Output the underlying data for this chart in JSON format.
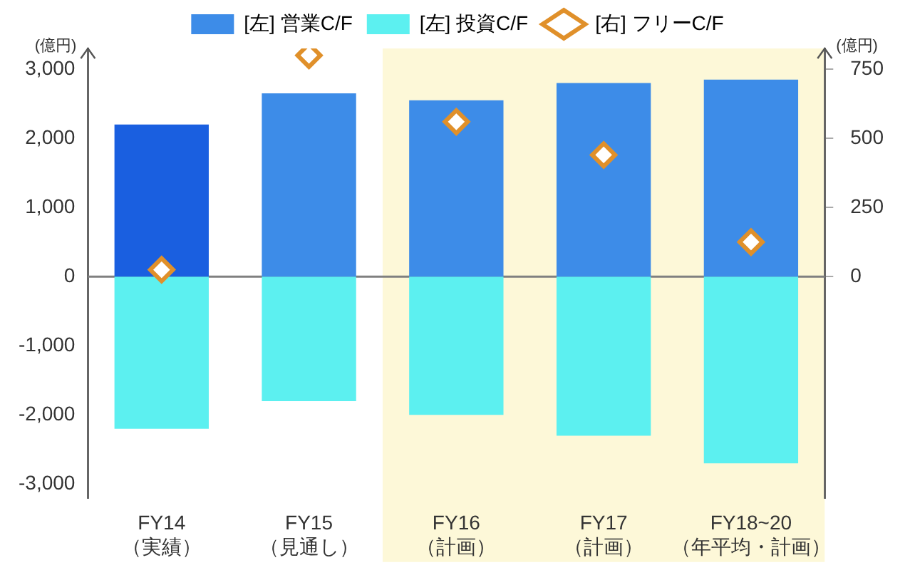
{
  "chart_data": {
    "type": "bar",
    "stacked": true,
    "categories": [
      "FY14\n（実績）",
      "FY15\n（見通し）",
      "FY16\n（計画）",
      "FY17\n（計画）",
      "FY18~20\n（年平均・計画）"
    ],
    "series": [
      {
        "name": "[左] 営業C/F",
        "color": "#3d8ce8",
        "colors": [
          "#1a5fe0",
          "#3d8ce8",
          "#3d8ce8",
          "#3d8ce8",
          "#3d8ce8"
        ],
        "values": [
          2200,
          2650,
          2550,
          2800,
          2850
        ]
      },
      {
        "name": "[左] 投資C/F",
        "color": "#5cf0f0",
        "values": [
          -2200,
          -1800,
          -2000,
          -2300,
          -2700
        ]
      },
      {
        "name": "[右] フリーC/F",
        "type": "scatter",
        "axis": "y2",
        "color": "#e0902a",
        "marker": "diamond",
        "x": [
          "FY14\n（実績）",
          "FY15\n（見通し）",
          "FY16\n（計画）",
          "FY17\n（計画）",
          "FY18~20\n（年平均・計画）"
        ],
        "values": [
          25,
          800,
          560,
          440,
          125
        ]
      }
    ],
    "ylabel": "(億円)",
    "y2label": "(億円)",
    "ylim": [
      -3200,
      3300
    ],
    "yticks": [
      {
        "value": -3000,
        "label": "-3,000"
      },
      {
        "value": -2000,
        "label": "-2,000"
      },
      {
        "value": -1000,
        "label": "-1,000"
      },
      0,
      {
        "value": 1000,
        "label": "1,000"
      },
      {
        "value": 2000,
        "label": "2,000"
      },
      {
        "value": 3000,
        "label": "3,000"
      }
    ],
    "y2lim": [
      -800,
      825
    ],
    "y2ticks": [
      0,
      250,
      500,
      750
    ],
    "ref_lines": [
      {
        "axis": "y",
        "value": 0,
        "color": "#808080"
      }
    ],
    "bands": [
      {
        "axis": "x",
        "from": "FY16\n（計画）",
        "to": "FY18~20\n（年平均・計画）",
        "color": "#fdf8d8"
      }
    ],
    "grid": false,
    "legend": "top"
  }
}
